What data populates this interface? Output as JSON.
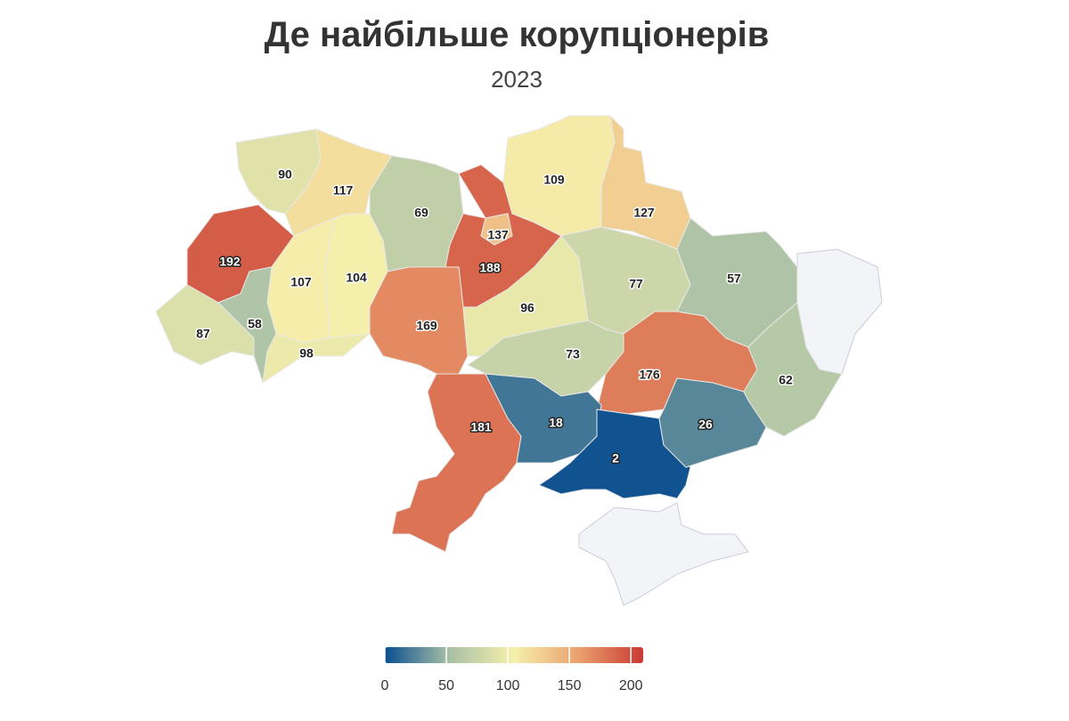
{
  "title": "Де найбільше корупціонерів",
  "subtitle": "2023",
  "regions": {
    "values": [
      90,
      117,
      69,
      137,
      188,
      109,
      127,
      192,
      107,
      104,
      87,
      58,
      98,
      169,
      96,
      77,
      57,
      73,
      176,
      62,
      181,
      18,
      2,
      26
    ]
  },
  "colorbar": {
    "zlim": [
      0,
      210
    ],
    "ticks": [
      0,
      50,
      100,
      150,
      200
    ],
    "colors": [
      "#0b4f8f",
      "#a8c0a6",
      "#f6f0ac",
      "#eaa16f",
      "#c93a33"
    ]
  }
}
